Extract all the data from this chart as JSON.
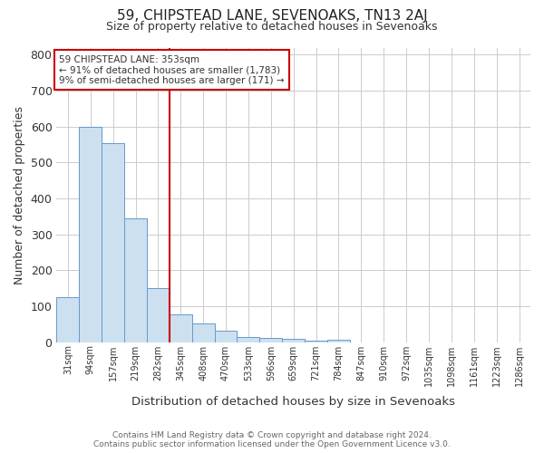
{
  "title1": "59, CHIPSTEAD LANE, SEVENOAKS, TN13 2AJ",
  "title2": "Size of property relative to detached houses in Sevenoaks",
  "xlabel": "Distribution of detached houses by size in Sevenoaks",
  "ylabel": "Number of detached properties",
  "categories": [
    "31sqm",
    "94sqm",
    "157sqm",
    "219sqm",
    "282sqm",
    "345sqm",
    "408sqm",
    "470sqm",
    "533sqm",
    "596sqm",
    "659sqm",
    "721sqm",
    "784sqm",
    "847sqm",
    "910sqm",
    "972sqm",
    "1035sqm",
    "1098sqm",
    "1161sqm",
    "1223sqm",
    "1286sqm"
  ],
  "values": [
    125,
    600,
    555,
    345,
    150,
    77,
    52,
    33,
    15,
    12,
    8,
    3,
    7,
    0,
    0,
    0,
    0,
    0,
    0,
    0,
    0
  ],
  "bar_color": "#cce0f0",
  "bar_edge_color": "#6699cc",
  "ylim": [
    0,
    820
  ],
  "yticks": [
    0,
    100,
    200,
    300,
    400,
    500,
    600,
    700,
    800
  ],
  "marker_index": 5,
  "marker_color": "#cc0000",
  "annotation_line1": "59 CHIPSTEAD LANE: 353sqm",
  "annotation_line2": "← 91% of detached houses are smaller (1,783)",
  "annotation_line3": "9% of semi-detached houses are larger (171) →",
  "footer_line1": "Contains HM Land Registry data © Crown copyright and database right 2024.",
  "footer_line2": "Contains public sector information licensed under the Open Government Licence v3.0.",
  "background_color": "#ffffff",
  "grid_color": "#cccccc",
  "fig_width": 6.0,
  "fig_height": 5.0,
  "dpi": 100
}
